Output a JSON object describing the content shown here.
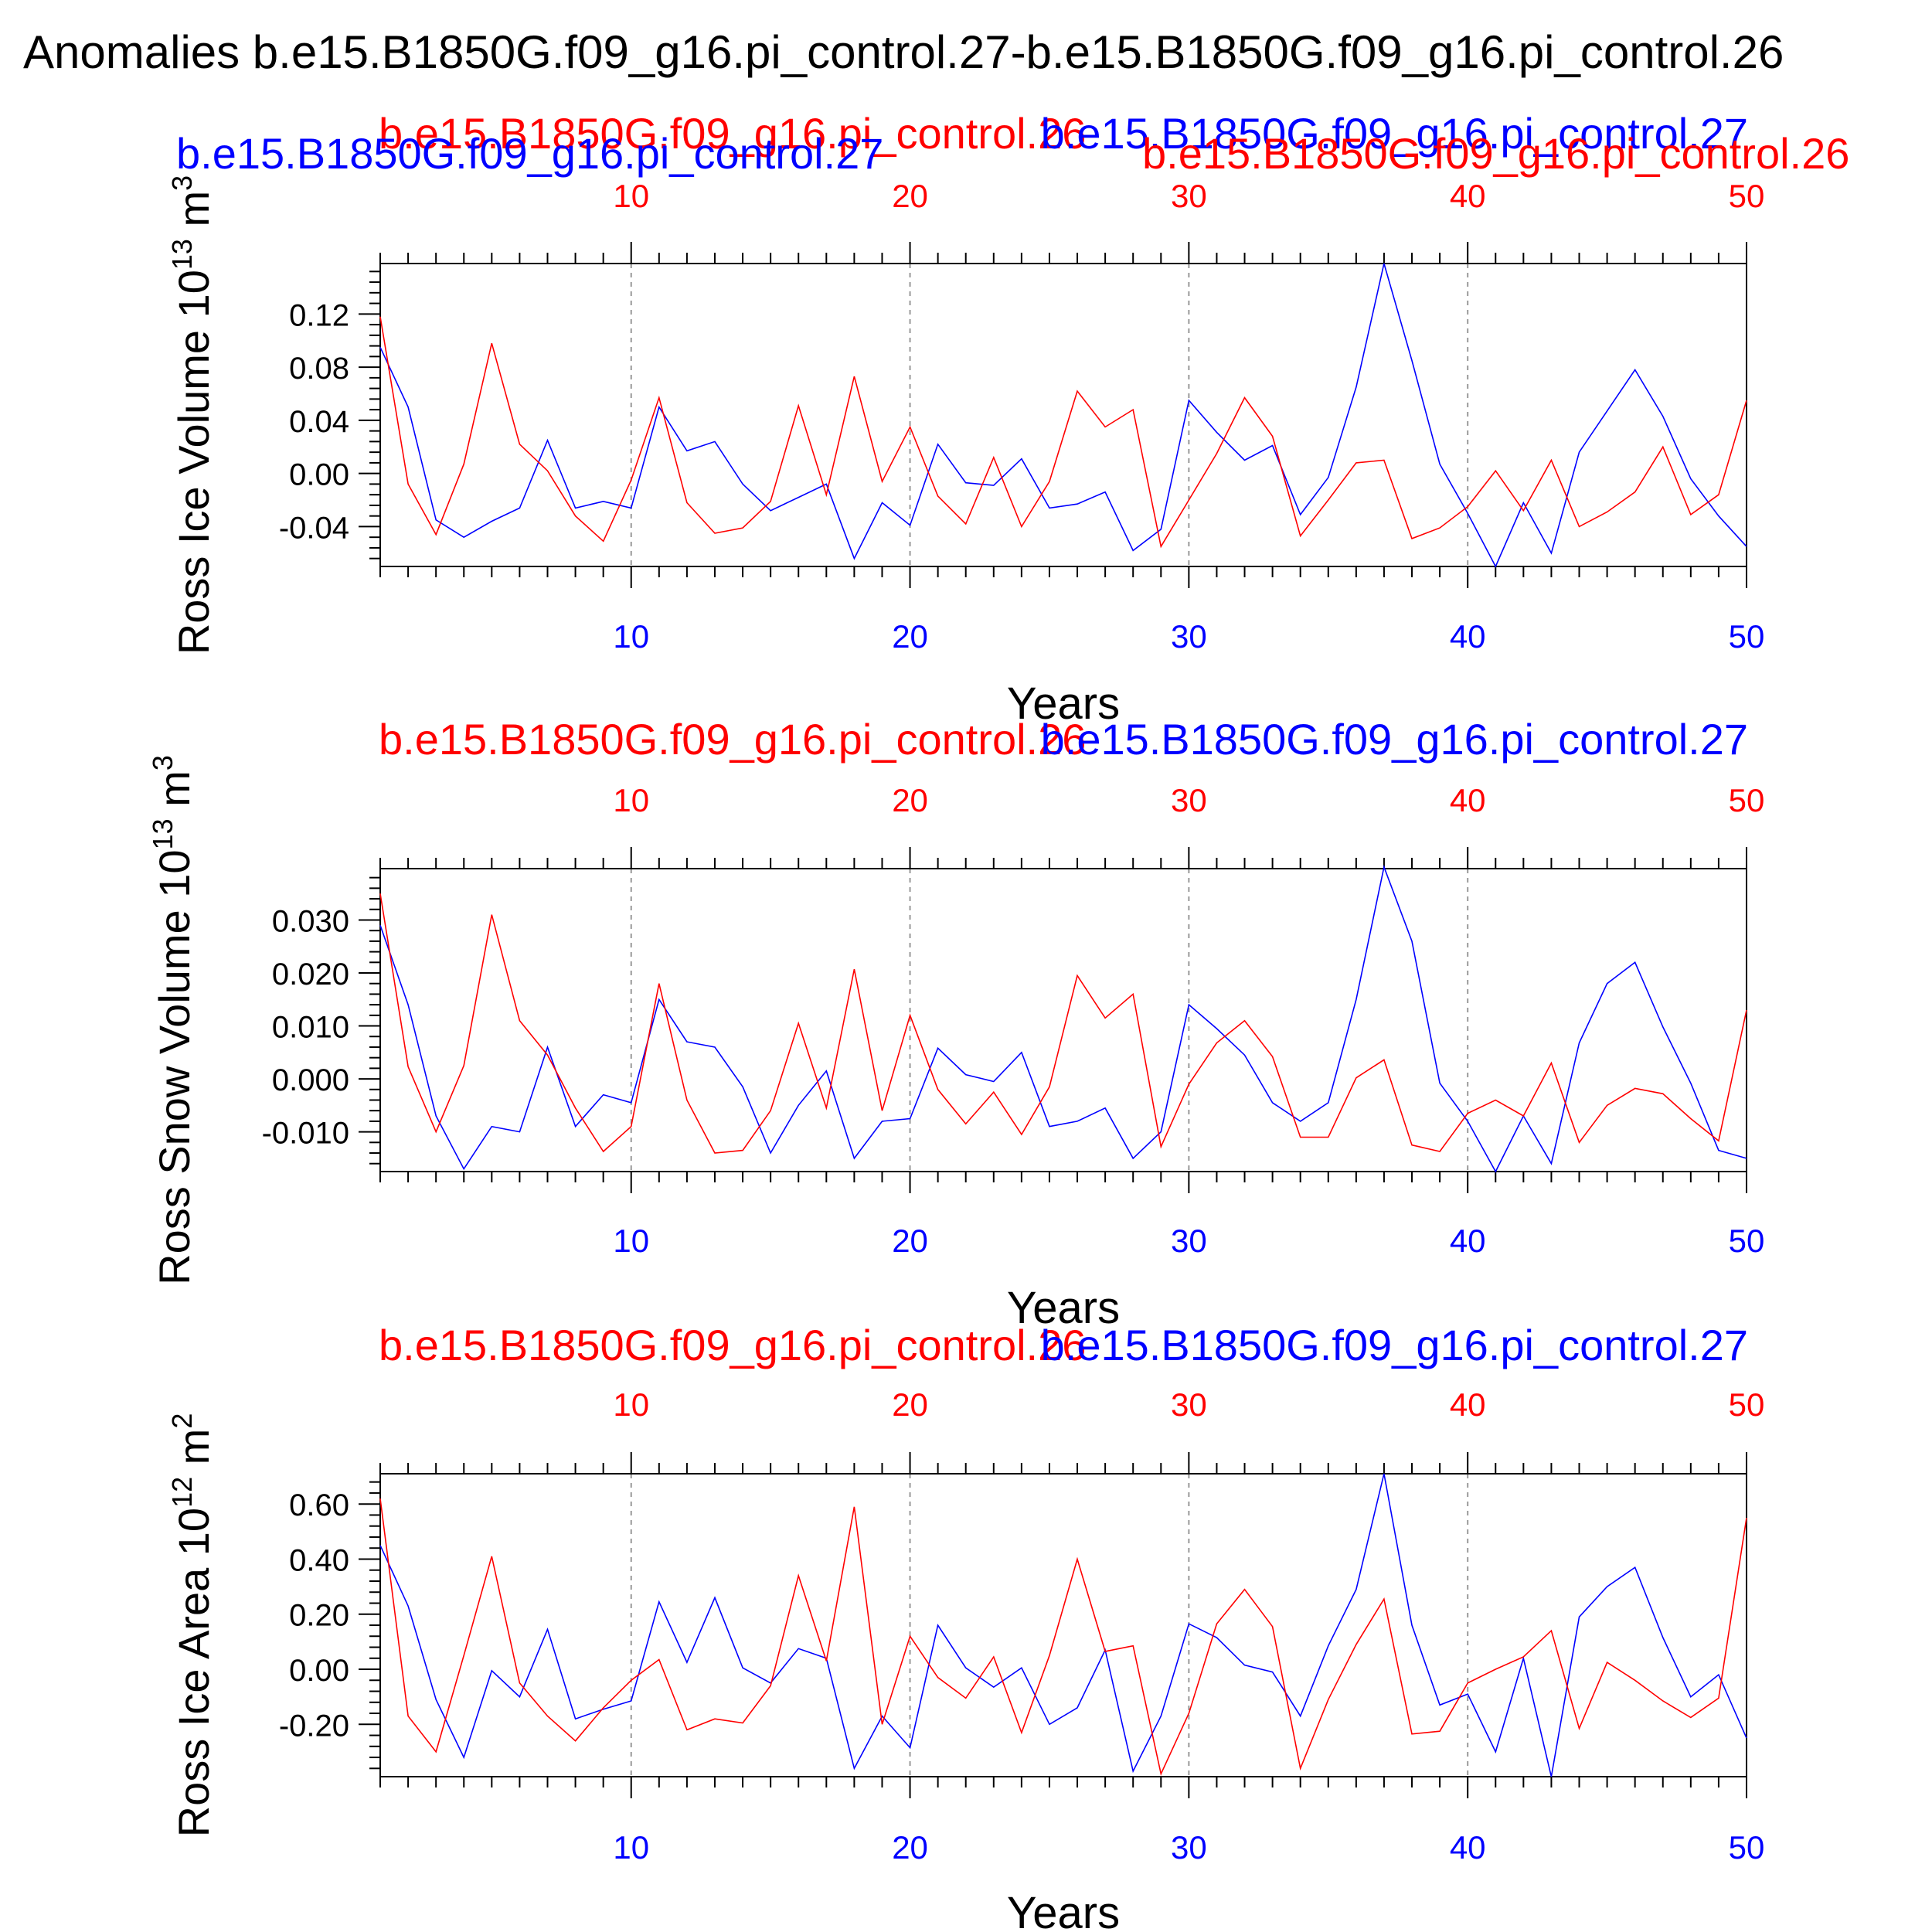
{
  "page": {
    "title": "Anomalies b.e15.B1850G.f09_g16.pi_control.27-b.e15.B1850G.f09_g16.pi_control.26"
  },
  "colors": {
    "red": "#ff0000",
    "blue": "#0000ff",
    "axis": "#000000",
    "grid": "#999999"
  },
  "chart_data": [
    {
      "type": "line",
      "title_red": "b.e15.B1850G.f09_g16.pi_control.26",
      "title_blue": "b.e15.B1850G.f09_g16.pi_control.27",
      "title_red_2": "b.e15.B1850G.f09_g16.pi_control.26",
      "title_blue_2": "b.e15.B1850G.f09_g16.pi_control.27",
      "ylabel_main": "Ross Ice Volume 10",
      "ylabel_exp": "13",
      "ylabel_unit": " m",
      "ylabel_unit_exp": "3",
      "xlabel": "Years",
      "xlim": [
        1,
        50
      ],
      "ylim": [
        -0.07,
        0.158
      ],
      "yticks": [
        -0.04,
        0.0,
        0.04,
        0.08,
        0.12
      ],
      "ytick_labels": [
        "-0.04",
        "0.00",
        "0.04",
        "0.08",
        "0.12"
      ],
      "xticks": [
        10,
        20,
        30,
        40,
        50
      ],
      "xtick_labels": [
        "10",
        "20",
        "30",
        "40",
        "50"
      ],
      "grid_x": true,
      "series": [
        {
          "name": "b.e15.B1850G.f09_g16.pi_control.27",
          "color": "#0000ff",
          "x": [
            1,
            2,
            3,
            4,
            5,
            6,
            7,
            8,
            9,
            10,
            11,
            12,
            13,
            14,
            15,
            16,
            17,
            18,
            19,
            20,
            21,
            22,
            23,
            24,
            25,
            26,
            27,
            28,
            29,
            30,
            31,
            32,
            33,
            34,
            35,
            36,
            37,
            38,
            39,
            40,
            41,
            42,
            43,
            44,
            45,
            46,
            47,
            48,
            49,
            50
          ],
          "y": [
            0.095,
            0.05,
            -0.035,
            -0.048,
            -0.036,
            -0.026,
            0.025,
            -0.026,
            -0.021,
            -0.026,
            0.05,
            0.017,
            0.024,
            -0.008,
            -0.028,
            -0.018,
            -0.008,
            -0.064,
            -0.022,
            -0.039,
            0.022,
            -0.007,
            -0.009,
            0.011,
            -0.026,
            -0.023,
            -0.014,
            -0.058,
            -0.042,
            0.055,
            0.031,
            0.01,
            0.021,
            -0.031,
            -0.003,
            0.065,
            0.158,
            0.085,
            0.007,
            -0.03,
            -0.07,
            -0.022,
            -0.06,
            0.016,
            0.047,
            0.078,
            0.043,
            -0.004,
            -0.032,
            -0.055
          ]
        },
        {
          "name": "b.e15.B1850G.f09_g16.pi_control.26",
          "color": "#ff0000",
          "x": [
            1,
            2,
            3,
            4,
            5,
            6,
            7,
            8,
            9,
            10,
            11,
            12,
            13,
            14,
            15,
            16,
            17,
            18,
            19,
            20,
            21,
            22,
            23,
            24,
            25,
            26,
            27,
            28,
            29,
            30,
            31,
            32,
            33,
            34,
            35,
            36,
            37,
            38,
            39,
            40,
            41,
            42,
            43,
            44,
            45,
            46,
            47,
            48,
            49,
            50
          ],
          "y": [
            0.118,
            -0.008,
            -0.046,
            0.007,
            0.098,
            0.022,
            0.002,
            -0.032,
            -0.051,
            -0.005,
            0.057,
            -0.022,
            -0.045,
            -0.041,
            -0.021,
            0.051,
            -0.016,
            0.073,
            -0.006,
            0.035,
            -0.017,
            -0.038,
            0.012,
            -0.04,
            -0.006,
            0.062,
            0.035,
            0.048,
            -0.055,
            -0.02,
            0.015,
            0.057,
            0.028,
            -0.047,
            -0.02,
            0.008,
            0.01,
            -0.049,
            -0.041,
            -0.025,
            0.002,
            -0.028,
            0.01,
            -0.04,
            -0.029,
            -0.014,
            0.02,
            -0.031,
            -0.016,
            0.055
          ]
        }
      ]
    },
    {
      "type": "line",
      "title_red": "b.e15.B1850G.f09_g16.pi_control.26",
      "title_blue": "b.e15.B1850G.f09_g16.pi_control.27",
      "ylabel_main": "Ross Snow Volume 10",
      "ylabel_exp": "13",
      "ylabel_unit": " m",
      "ylabel_unit_exp": "3",
      "xlabel": "Years",
      "xlim": [
        1,
        50
      ],
      "ylim": [
        -0.0175,
        0.0397
      ],
      "yticks": [
        -0.01,
        0.0,
        0.01,
        0.02,
        0.03
      ],
      "ytick_labels": [
        "-0.010",
        "0.000",
        "0.010",
        "0.020",
        "0.030"
      ],
      "xticks": [
        10,
        20,
        30,
        40,
        50
      ],
      "xtick_labels": [
        "10",
        "20",
        "30",
        "40",
        "50"
      ],
      "grid_x": true,
      "series": [
        {
          "name": "b.e15.B1850G.f09_g16.pi_control.27",
          "color": "#0000ff",
          "x": [
            1,
            2,
            3,
            4,
            5,
            6,
            7,
            8,
            9,
            10,
            11,
            12,
            13,
            14,
            15,
            16,
            17,
            18,
            19,
            20,
            21,
            22,
            23,
            24,
            25,
            26,
            27,
            28,
            29,
            30,
            31,
            32,
            33,
            34,
            35,
            36,
            37,
            38,
            39,
            40,
            41,
            42,
            43,
            44,
            45,
            46,
            47,
            48,
            49,
            50
          ],
          "y": [
            0.029,
            0.014,
            -0.007,
            -0.017,
            -0.009,
            -0.01,
            0.006,
            -0.009,
            -0.003,
            -0.0045,
            0.015,
            0.007,
            0.006,
            -0.0015,
            -0.014,
            -0.005,
            0.0015,
            -0.015,
            -0.008,
            -0.0075,
            0.0058,
            0.0008,
            -0.0005,
            0.005,
            -0.009,
            -0.008,
            -0.0055,
            -0.015,
            -0.01,
            0.014,
            0.0095,
            0.0045,
            -0.0045,
            -0.008,
            -0.0045,
            0.015,
            0.04,
            0.026,
            -0.0008,
            -0.008,
            -0.0175,
            -0.007,
            -0.016,
            0.0068,
            0.018,
            0.022,
            0.0098,
            -0.0008,
            -0.0135,
            -0.015
          ]
        },
        {
          "name": "b.e15.B1850G.f09_g16.pi_control.26",
          "color": "#ff0000",
          "x": [
            1,
            2,
            3,
            4,
            5,
            6,
            7,
            8,
            9,
            10,
            11,
            12,
            13,
            14,
            15,
            16,
            17,
            18,
            19,
            20,
            21,
            22,
            23,
            24,
            25,
            26,
            27,
            28,
            29,
            30,
            31,
            32,
            33,
            34,
            35,
            36,
            37,
            38,
            39,
            40,
            41,
            42,
            43,
            44,
            45,
            46,
            47,
            48,
            49,
            50
          ],
          "y": [
            0.035,
            0.0023,
            -0.01,
            0.0025,
            0.031,
            0.011,
            0.0045,
            -0.0055,
            -0.0137,
            -0.009,
            0.018,
            -0.004,
            -0.014,
            -0.0135,
            -0.006,
            0.0105,
            -0.0055,
            0.0207,
            -0.006,
            0.012,
            -0.002,
            -0.0085,
            -0.0025,
            -0.0105,
            -0.0015,
            0.0195,
            0.0115,
            0.016,
            -0.0128,
            -0.001,
            0.0068,
            0.011,
            0.0042,
            -0.011,
            -0.011,
            0.0002,
            0.0036,
            -0.0125,
            -0.0137,
            -0.0065,
            -0.004,
            -0.007,
            0.003,
            -0.012,
            -0.005,
            -0.0018,
            -0.0028,
            -0.0075,
            -0.0117,
            0.013
          ]
        }
      ]
    },
    {
      "type": "line",
      "title_red": "b.e15.B1850G.f09_g16.pi_control.26",
      "title_blue": "b.e15.B1850G.f09_g16.pi_control.27",
      "ylabel_main": "Ross Ice Area 10",
      "ylabel_exp": "12",
      "ylabel_unit": " m",
      "ylabel_unit_exp": "2",
      "xlabel": "Years",
      "xlim": [
        1,
        50
      ],
      "ylim": [
        -0.39,
        0.71
      ],
      "yticks": [
        -0.2,
        0.0,
        0.2,
        0.4,
        0.6
      ],
      "ytick_labels": [
        "-0.20",
        "0.00",
        "0.20",
        "0.40",
        "0.60"
      ],
      "xticks": [
        10,
        20,
        30,
        40,
        50
      ],
      "xtick_labels": [
        "10",
        "20",
        "30",
        "40",
        "50"
      ],
      "grid_x": true,
      "series": [
        {
          "name": "b.e15.B1850G.f09_g16.pi_control.27",
          "color": "#0000ff",
          "x": [
            1,
            2,
            3,
            4,
            5,
            6,
            7,
            8,
            9,
            10,
            11,
            12,
            13,
            14,
            15,
            16,
            17,
            18,
            19,
            20,
            21,
            22,
            23,
            24,
            25,
            26,
            27,
            28,
            29,
            30,
            31,
            32,
            33,
            34,
            35,
            36,
            37,
            38,
            39,
            40,
            41,
            42,
            43,
            44,
            45,
            46,
            47,
            48,
            49,
            50
          ],
          "y": [
            0.45,
            0.23,
            -0.11,
            -0.32,
            -0.005,
            -0.1,
            0.145,
            -0.18,
            -0.145,
            -0.115,
            0.245,
            0.025,
            0.26,
            0.005,
            -0.05,
            0.075,
            0.04,
            -0.36,
            -0.17,
            -0.285,
            0.16,
            0.005,
            -0.065,
            0.005,
            -0.2,
            -0.14,
            0.07,
            -0.37,
            -0.17,
            0.165,
            0.115,
            0.015,
            -0.01,
            -0.17,
            0.085,
            0.29,
            0.71,
            0.16,
            -0.13,
            -0.09,
            -0.3,
            0.04,
            -0.39,
            0.19,
            0.3,
            0.37,
            0.115,
            -0.1,
            -0.02,
            -0.25
          ]
        },
        {
          "name": "b.e15.B1850G.f09_g16.pi_control.26",
          "color": "#ff0000",
          "x": [
            1,
            2,
            3,
            4,
            5,
            6,
            7,
            8,
            9,
            10,
            11,
            12,
            13,
            14,
            15,
            16,
            17,
            18,
            19,
            20,
            21,
            22,
            23,
            24,
            25,
            26,
            27,
            28,
            29,
            30,
            31,
            32,
            33,
            34,
            35,
            36,
            37,
            38,
            39,
            40,
            41,
            42,
            43,
            44,
            45,
            46,
            47,
            48,
            49,
            50
          ],
          "y": [
            0.62,
            -0.17,
            -0.3,
            0.05,
            0.41,
            -0.05,
            -0.17,
            -0.26,
            -0.14,
            -0.04,
            0.035,
            -0.22,
            -0.18,
            -0.195,
            -0.06,
            0.34,
            0.03,
            0.59,
            -0.2,
            0.12,
            -0.03,
            -0.105,
            0.045,
            -0.23,
            0.05,
            0.4,
            0.065,
            0.085,
            -0.38,
            -0.16,
            0.165,
            0.29,
            0.155,
            -0.36,
            -0.11,
            0.09,
            0.255,
            -0.235,
            -0.225,
            -0.05,
            0.0,
            0.045,
            0.14,
            -0.215,
            0.025,
            -0.04,
            -0.115,
            -0.175,
            -0.105,
            0.55
          ]
        }
      ]
    }
  ]
}
